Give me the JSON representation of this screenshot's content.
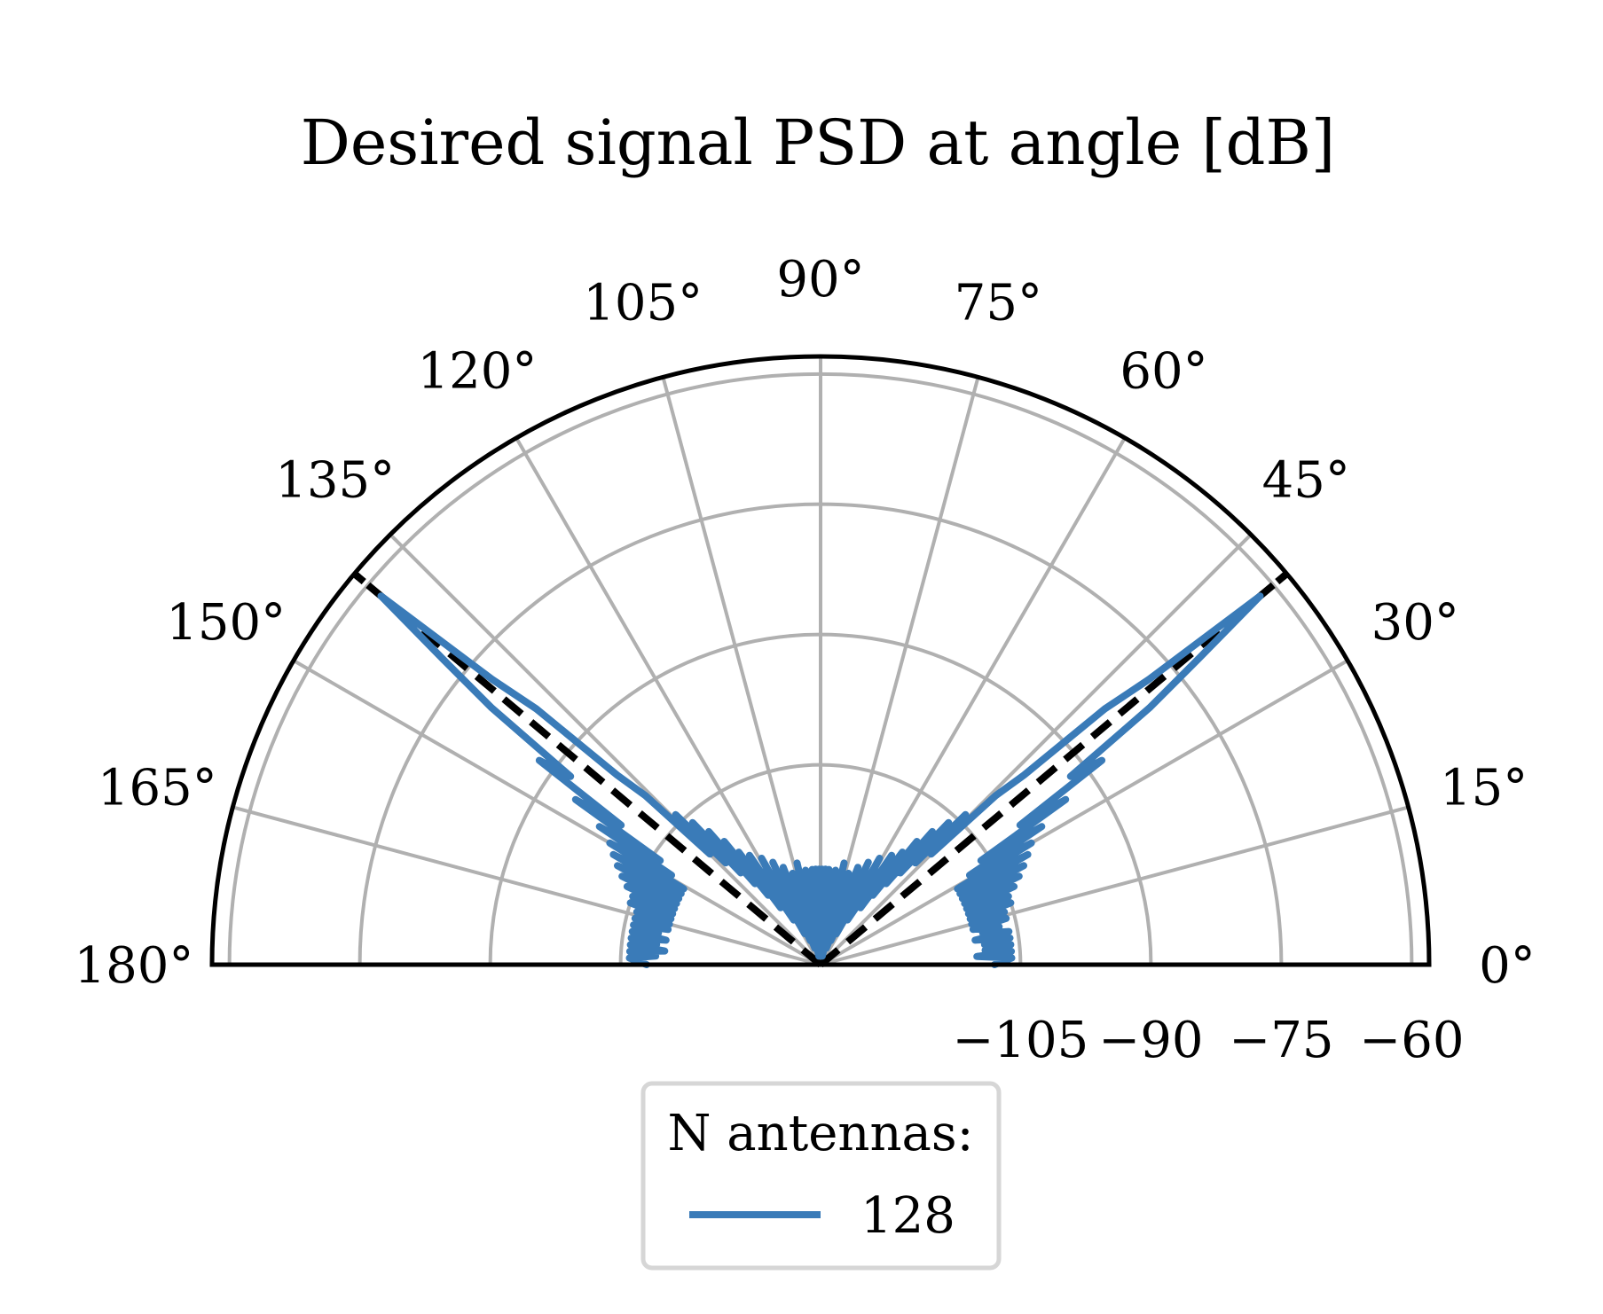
{
  "chart_data": {
    "type": "polar",
    "title": "Desired signal PSD at angle [dB]",
    "theta_range_deg": [
      0,
      180
    ],
    "theta_ticks": [
      "0°",
      "15°",
      "30°",
      "45°",
      "60°",
      "75°",
      "90°",
      "105°",
      "120°",
      "135°",
      "150°",
      "165°",
      "180°"
    ],
    "r_range": [
      -128,
      -58
    ],
    "r_ticks": [
      -105,
      -90,
      -75,
      -60
    ],
    "r_tick_labels": [
      "−105",
      "−90",
      "−75",
      "−60"
    ],
    "grid": true,
    "legend": {
      "title": "N antennas:",
      "placement": "bottom-center",
      "entries": [
        "128"
      ]
    },
    "reference_lines": {
      "style": "dashed",
      "color": "#000000",
      "angles_deg": [
        40,
        140
      ],
      "r_extent": [
        -128,
        -58
      ]
    },
    "series": [
      {
        "name": "128",
        "color": "#3a7bb8",
        "points": [
          [
            0,
            -108
          ],
          [
            2,
            -106
          ],
          [
            3,
            -110
          ],
          [
            4,
            -106
          ],
          [
            5,
            -109
          ],
          [
            6,
            -106
          ],
          [
            7,
            -109
          ],
          [
            8,
            -106
          ],
          [
            9,
            -110
          ],
          [
            10,
            -106
          ],
          [
            11,
            -109
          ],
          [
            12,
            -107
          ],
          [
            13,
            -110
          ],
          [
            14,
            -106
          ],
          [
            15,
            -110
          ],
          [
            16,
            -106
          ],
          [
            17,
            -110
          ],
          [
            18,
            -105
          ],
          [
            19,
            -110
          ],
          [
            20,
            -105
          ],
          [
            21,
            -110
          ],
          [
            22,
            -104
          ],
          [
            23,
            -110
          ],
          [
            24,
            -103
          ],
          [
            25,
            -110
          ],
          [
            26,
            -102
          ],
          [
            27,
            -110
          ],
          [
            28,
            -101
          ],
          [
            29,
            -110
          ],
          [
            30,
            -100
          ],
          [
            31,
            -108
          ],
          [
            32,
            -98
          ],
          [
            33,
            -106
          ],
          [
            34,
            -94
          ],
          [
            35,
            -100
          ],
          [
            36,
            -88
          ],
          [
            37,
            -92
          ],
          [
            38,
            -80
          ],
          [
            39,
            -72
          ],
          [
            40,
            -62
          ],
          [
            41,
            -78
          ],
          [
            42,
            -84
          ],
          [
            43,
            -96
          ],
          [
            44,
            -100
          ],
          [
            45,
            -110
          ],
          [
            46,
            -104
          ],
          [
            47,
            -112
          ],
          [
            48,
            -106
          ],
          [
            49,
            -114
          ],
          [
            50,
            -108
          ],
          [
            51,
            -116
          ],
          [
            52,
            -110
          ],
          [
            53,
            -118
          ],
          [
            54,
            -112
          ],
          [
            55,
            -120
          ],
          [
            57,
            -113
          ],
          [
            59,
            -122
          ],
          [
            61,
            -114
          ],
          [
            63,
            -124
          ],
          [
            65,
            -115
          ],
          [
            67,
            -125
          ],
          [
            69,
            -116
          ],
          [
            71,
            -126
          ],
          [
            73,
            -117
          ],
          [
            75,
            -126
          ],
          [
            77,
            -116
          ],
          [
            79,
            -127
          ],
          [
            81,
            -117
          ],
          [
            83,
            -127
          ],
          [
            85,
            -117
          ],
          [
            86,
            -126
          ],
          [
            87,
            -117
          ],
          [
            88,
            -126
          ],
          [
            89,
            -117
          ],
          [
            90,
            -126
          ],
          [
            91,
            -117
          ],
          [
            92,
            -126
          ],
          [
            93,
            -117
          ],
          [
            94,
            -126
          ],
          [
            95,
            -117
          ],
          [
            97,
            -127
          ],
          [
            99,
            -117
          ],
          [
            101,
            -127
          ],
          [
            103,
            -116
          ],
          [
            105,
            -126
          ],
          [
            107,
            -117
          ],
          [
            109,
            -126
          ],
          [
            111,
            -116
          ],
          [
            113,
            -125
          ],
          [
            115,
            -115
          ],
          [
            117,
            -124
          ],
          [
            119,
            -114
          ],
          [
            121,
            -122
          ],
          [
            123,
            -113
          ],
          [
            125,
            -120
          ],
          [
            126,
            -112
          ],
          [
            127,
            -118
          ],
          [
            128,
            -110
          ],
          [
            129,
            -116
          ],
          [
            130,
            -108
          ],
          [
            131,
            -114
          ],
          [
            132,
            -106
          ],
          [
            133,
            -112
          ],
          [
            134,
            -104
          ],
          [
            135,
            -110
          ],
          [
            136,
            -100
          ],
          [
            137,
            -96
          ],
          [
            138,
            -84
          ],
          [
            139,
            -78
          ],
          [
            140,
            -62
          ],
          [
            141,
            -72
          ],
          [
            142,
            -80
          ],
          [
            143,
            -92
          ],
          [
            144,
            -88
          ],
          [
            145,
            -100
          ],
          [
            146,
            -94
          ],
          [
            147,
            -106
          ],
          [
            148,
            -98
          ],
          [
            149,
            -108
          ],
          [
            150,
            -100
          ],
          [
            151,
            -110
          ],
          [
            152,
            -101
          ],
          [
            153,
            -110
          ],
          [
            154,
            -102
          ],
          [
            155,
            -110
          ],
          [
            156,
            -103
          ],
          [
            157,
            -110
          ],
          [
            158,
            -104
          ],
          [
            159,
            -110
          ],
          [
            160,
            -105
          ],
          [
            161,
            -110
          ],
          [
            162,
            -105
          ],
          [
            163,
            -110
          ],
          [
            164,
            -106
          ],
          [
            165,
            -110
          ],
          [
            166,
            -106
          ],
          [
            167,
            -110
          ],
          [
            168,
            -106
          ],
          [
            169,
            -109
          ],
          [
            170,
            -106
          ],
          [
            171,
            -110
          ],
          [
            172,
            -106
          ],
          [
            173,
            -109
          ],
          [
            174,
            -106
          ],
          [
            175,
            -110
          ],
          [
            176,
            -106
          ],
          [
            177,
            -109
          ],
          [
            178,
            -106
          ],
          [
            180,
            -108
          ]
        ]
      }
    ]
  }
}
